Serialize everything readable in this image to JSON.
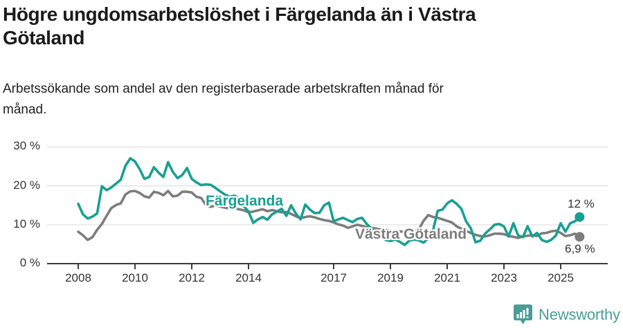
{
  "header": {
    "title_lines": [
      "Högre ungdomsarbetslöshet i Färgelanda än i Västra",
      "Götaland"
    ],
    "subtitle_lines": [
      "Arbetssökande som andel av den registerbaserade arbetskraften månad för",
      "månad."
    ]
  },
  "chart_data": {
    "type": "line",
    "title": "Högre ungdomsarbetslöshet i Färgelanda än i Västra Götaland",
    "subtitle": "Arbetssökande som andel av den registerbaserade arbetskraften månad för månad.",
    "x_unit": "year",
    "x_start": 2008.0,
    "x_step": 0.16667,
    "x_range": [
      2008.0,
      2025.67
    ],
    "ylim": [
      0,
      32
    ],
    "grid": "horizontal",
    "legend": "inline-labels",
    "x_tick_years": [
      2008,
      2010,
      2012,
      2014,
      2017,
      2019,
      2021,
      2023,
      2025
    ],
    "x_tick_labels": [
      "2008",
      "2010",
      "2012",
      "2014",
      "2017",
      "2019",
      "2021",
      "2023",
      "2025"
    ],
    "y_ticks": [
      0,
      10,
      20,
      30
    ],
    "y_tick_labels": [
      "0 %",
      "10 %",
      "20 %",
      "30 %"
    ],
    "grid_color": "#d9d9d9",
    "axis_color": "#3a3a3a",
    "series": [
      {
        "name": "Färgelanda",
        "color": "#18a093",
        "end_label": "12 %",
        "values": [
          15.4,
          12.7,
          11.6,
          12.1,
          12.9,
          19.9,
          18.9,
          19.6,
          20.6,
          21.6,
          25.2,
          27.1,
          26.3,
          24.3,
          21.8,
          22.3,
          24.8,
          23.4,
          22.3,
          26.1,
          23.6,
          22.0,
          22.8,
          24.6,
          21.8,
          20.9,
          20.2,
          20.4,
          20.3,
          19.5,
          18.6,
          17.8,
          17.2,
          17.5,
          16.9,
          14.8,
          13.4,
          10.5,
          11.4,
          12.0,
          11.3,
          12.7,
          13.4,
          14.1,
          12.3,
          15.0,
          12.9,
          11.4,
          15.2,
          13.9,
          13.0,
          13.1,
          15.0,
          15.7,
          10.9,
          11.4,
          11.8,
          11.2,
          10.7,
          11.5,
          11.8,
          10.2,
          9.0,
          8.0,
          7.0,
          6.1,
          5.8,
          6.2,
          5.6,
          4.8,
          5.9,
          6.2,
          6.0,
          5.4,
          6.5,
          8.5,
          13.6,
          13.9,
          15.5,
          16.3,
          15.4,
          14.1,
          10.9,
          9.1,
          5.5,
          5.9,
          7.7,
          8.8,
          10.0,
          10.2,
          9.6,
          7.0,
          10.4,
          7.3,
          6.8,
          9.6,
          7.0,
          7.9,
          6.1,
          5.6,
          6.1,
          7.3,
          10.4,
          8.2,
          10.4,
          10.9,
          12.0
        ]
      },
      {
        "name": "Västra Götaland",
        "color": "#7d7d7d",
        "end_label": "6,9 %",
        "values": [
          8.2,
          7.3,
          6.1,
          6.8,
          8.7,
          10.2,
          12.3,
          14.3,
          15.1,
          15.5,
          17.8,
          18.6,
          18.7,
          18.2,
          17.3,
          17.0,
          18.5,
          18.2,
          17.6,
          18.7,
          17.3,
          17.5,
          18.5,
          18.5,
          18.3,
          17.2,
          16.9,
          15.1,
          14.6,
          15.0,
          14.7,
          14.4,
          14.2,
          14.3,
          14.0,
          13.7,
          13.2,
          13.4,
          13.7,
          14.0,
          13.5,
          13.8,
          13.5,
          13.2,
          13.3,
          12.8,
          12.2,
          11.7,
          12.0,
          12.2,
          11.9,
          11.5,
          11.2,
          11.0,
          10.6,
          10.1,
          9.8,
          9.2,
          9.6,
          10.0,
          9.7,
          9.4,
          9.2,
          9.0,
          8.8,
          8.7,
          8.5,
          8.4,
          8.3,
          8.2,
          8.1,
          8.3,
          8.8,
          11.0,
          12.5,
          12.0,
          11.8,
          11.4,
          11.0,
          10.6,
          9.6,
          9.0,
          8.4,
          7.9,
          7.4,
          7.1,
          7.0,
          7.3,
          7.7,
          7.7,
          7.6,
          7.1,
          6.9,
          6.6,
          7.0,
          7.2,
          7.3,
          7.1,
          7.8,
          7.9,
          8.3,
          8.5,
          7.9,
          7.1,
          7.3,
          7.7,
          6.9
        ]
      }
    ]
  },
  "footer": {
    "brand": "Newsworthy",
    "brand_color": "#4a9d97",
    "logo_icon": "bar-chart-speech-bubble-icon"
  }
}
